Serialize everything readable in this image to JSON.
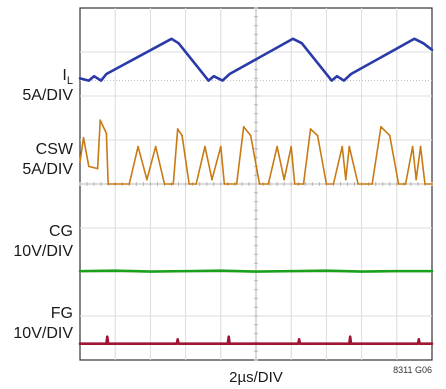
{
  "chart_data": {
    "type": "line",
    "title": "",
    "xlabel": "2µs/DIV",
    "figure_id": "8311 G06",
    "x_divisions": 10,
    "y_divisions": 8,
    "x_range_us": [
      0,
      20
    ],
    "grid": true,
    "series": [
      {
        "name": "I",
        "name_subscript": "L",
        "scale": "5A/DIV",
        "color": "#2a3aa8",
        "baseline_div": 6.35,
        "x_us": [
          0,
          0.5,
          0.8,
          1.2,
          1.5,
          5.2,
          5.6,
          7.3,
          7.6,
          8.1,
          8.5,
          12.1,
          12.6,
          14.3,
          14.6,
          15.0,
          15.4,
          19.0,
          19.5,
          20.0
        ],
        "y_div": [
          0.05,
          0.0,
          0.1,
          0.0,
          0.15,
          0.95,
          0.85,
          0.0,
          0.1,
          0.0,
          0.15,
          0.95,
          0.85,
          0.0,
          0.1,
          0.0,
          0.15,
          0.95,
          0.85,
          0.7
        ]
      },
      {
        "name": "CSW",
        "scale": "5A/DIV",
        "color": "#c87a14",
        "baseline_div": 4.0,
        "x_us": [
          0,
          0.2,
          0.5,
          1.0,
          1.15,
          1.5,
          1.6,
          2.0,
          2.4,
          2.8,
          3.3,
          3.8,
          4.3,
          4.8,
          5.1,
          5.3,
          5.55,
          5.8,
          6.2,
          6.6,
          7.1,
          7.5,
          8.0,
          8.2,
          8.4,
          8.9,
          9.3,
          9.7,
          10.2,
          10.7,
          11.2,
          11.6,
          12.0,
          12.2,
          12.45,
          12.7,
          13.1,
          13.5,
          14.0,
          14.4,
          14.9,
          15.1,
          15.3,
          15.8,
          16.2,
          16.6,
          17.1,
          17.6,
          18.1,
          18.5,
          18.9,
          19.1,
          19.35,
          19.6,
          20.0
        ],
        "y_div": [
          0.5,
          1.05,
          0.4,
          0.35,
          1.45,
          1.15,
          0.0,
          0.0,
          0.0,
          0.0,
          0.85,
          0.1,
          0.85,
          0.0,
          0.0,
          0.0,
          1.25,
          1.1,
          0.0,
          0.0,
          0.85,
          0.1,
          0.85,
          0.0,
          0.0,
          0.0,
          1.3,
          1.1,
          0.0,
          0.0,
          0.85,
          0.1,
          0.85,
          0.0,
          0.0,
          0.0,
          1.25,
          1.1,
          0.0,
          0.0,
          0.85,
          0.1,
          0.85,
          0.0,
          0.0,
          0.0,
          1.3,
          1.1,
          0.0,
          0.0,
          0.85,
          0.1,
          0.85,
          0.0,
          0.0
        ]
      },
      {
        "name": "CG",
        "scale": "10V/DIV",
        "color": "#1aa01a",
        "baseline_div": 2.0,
        "x_us": [
          0,
          2,
          4,
          6,
          8,
          10,
          12,
          14,
          16,
          18,
          20
        ],
        "y_div": [
          0.02,
          0.03,
          0.01,
          0.02,
          0.03,
          0.01,
          0.02,
          0.03,
          0.01,
          0.02,
          0.02
        ]
      },
      {
        "name": "FG",
        "scale": "10V/DIV",
        "color": "#a01535",
        "baseline_div": 0.35,
        "x_us": [
          0,
          1.5,
          1.55,
          1.6,
          5.5,
          5.55,
          5.6,
          8.4,
          8.45,
          8.5,
          12.4,
          12.45,
          12.5,
          15.3,
          15.35,
          15.4,
          19.2,
          19.25,
          19.3,
          20.0
        ],
        "y_div": [
          0.02,
          0.02,
          0.18,
          0.02,
          0.02,
          0.12,
          0.02,
          0.02,
          0.18,
          0.02,
          0.02,
          0.12,
          0.02,
          0.02,
          0.18,
          0.02,
          0.02,
          0.12,
          0.02,
          0.02
        ]
      }
    ]
  }
}
